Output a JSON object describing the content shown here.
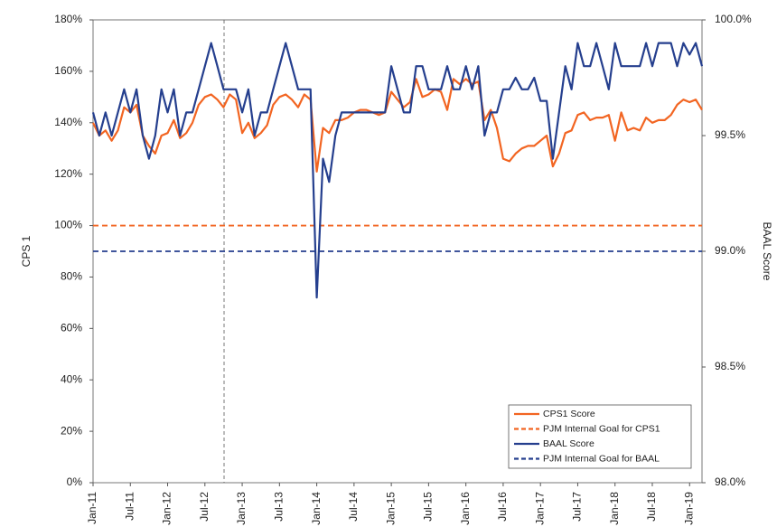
{
  "chart_data": {
    "type": "line",
    "categories": [
      "Jan-11",
      null,
      null,
      null,
      null,
      null,
      "Jul-11",
      null,
      null,
      null,
      null,
      null,
      "Jan-12",
      null,
      null,
      null,
      null,
      null,
      "Jul-12",
      null,
      null,
      null,
      null,
      null,
      "Jan-13",
      null,
      null,
      null,
      null,
      null,
      "Jul-13",
      null,
      null,
      null,
      null,
      null,
      "Jan-14",
      null,
      null,
      null,
      null,
      null,
      "Jul-14",
      null,
      null,
      null,
      null,
      null,
      "Jan-15",
      null,
      null,
      null,
      null,
      null,
      "Jul-15",
      null,
      null,
      null,
      null,
      null,
      "Jan-16",
      null,
      null,
      null,
      null,
      null,
      "Jul-16",
      null,
      null,
      null,
      null,
      null,
      "Jan-17",
      null,
      null,
      null,
      null,
      null,
      "Jul-17",
      null,
      null,
      null,
      null,
      null,
      "Jan-18",
      null,
      null,
      null,
      null,
      null,
      "Jul-18",
      null,
      null,
      null,
      null,
      null,
      "Jan-19",
      null,
      null
    ],
    "series": [
      {
        "name": "CPS1 Score",
        "color": "#f26522",
        "values": [
          140,
          135,
          137,
          133,
          137,
          146,
          144,
          147,
          135,
          131,
          128,
          135,
          136,
          141,
          134,
          136,
          140,
          147,
          150,
          151,
          149,
          146,
          151,
          149,
          136,
          140,
          134,
          136,
          139,
          147,
          150,
          151,
          149,
          146,
          151,
          149,
          121,
          138,
          136,
          141,
          141,
          142,
          144,
          145,
          145,
          144,
          143,
          144,
          152,
          149,
          146,
          148,
          157,
          150,
          151,
          153,
          152,
          145,
          157,
          155,
          157,
          155,
          156,
          141,
          145,
          138,
          126,
          125,
          128,
          130,
          131,
          131,
          133,
          135,
          123,
          128,
          136,
          137,
          143,
          144,
          141,
          142,
          142,
          143,
          133,
          144,
          137,
          138,
          137,
          142,
          140,
          141,
          141,
          143,
          147,
          149,
          148,
          149,
          145
        ]
      },
      {
        "name": "PJM Internal Goal for CPS1",
        "color": "#f26522",
        "dashed": true,
        "value": 100
      },
      {
        "name": "BAAL Score",
        "color": "#253f8e",
        "axis": "y2",
        "values": [
          99.6,
          99.5,
          99.6,
          99.5,
          99.6,
          99.7,
          99.6,
          99.7,
          99.5,
          99.4,
          99.5,
          99.7,
          99.6,
          99.7,
          99.5,
          99.6,
          99.6,
          99.7,
          99.8,
          99.9,
          99.8,
          99.7,
          99.7,
          99.7,
          99.6,
          99.7,
          99.5,
          99.6,
          99.6,
          99.7,
          99.8,
          99.9,
          99.8,
          99.7,
          99.7,
          99.7,
          98.8,
          99.4,
          99.3,
          99.5,
          99.6,
          99.6,
          99.6,
          99.6,
          99.6,
          99.6,
          99.6,
          99.6,
          99.8,
          99.7,
          99.6,
          99.6,
          99.8,
          99.8,
          99.7,
          99.7,
          99.7,
          99.8,
          99.7,
          99.7,
          99.8,
          99.7,
          99.8,
          99.5,
          99.6,
          99.6,
          99.7,
          99.7,
          99.75,
          99.7,
          99.7,
          99.75,
          99.65,
          99.65,
          99.4,
          99.6,
          99.8,
          99.7,
          99.9,
          99.8,
          99.8,
          99.9,
          99.8,
          99.7,
          99.9,
          99.8,
          99.8,
          99.8,
          99.8,
          99.9,
          99.8,
          99.9,
          99.9,
          99.9,
          99.8,
          99.9,
          99.85,
          99.9,
          99.8
        ]
      },
      {
        "name": "PJM Internal Goal for BAAL",
        "color": "#253f8e",
        "dashed": true,
        "axis": "y2",
        "value": 99.0
      }
    ],
    "ylabel": "CPS 1",
    "y2label": "BAAL Score",
    "ylim": [
      0,
      180
    ],
    "yticks": [
      {
        "value": 0,
        "label": "0%"
      },
      {
        "value": 20,
        "label": "20%"
      },
      {
        "value": 40,
        "label": "40%"
      },
      {
        "value": 60,
        "label": "60%"
      },
      {
        "value": 80,
        "label": "80%"
      },
      {
        "value": 100,
        "label": "100%"
      },
      {
        "value": 120,
        "label": "120%"
      },
      {
        "value": 140,
        "label": "140%"
      },
      {
        "value": 160,
        "label": "160%"
      },
      {
        "value": 180,
        "label": "180%"
      }
    ],
    "y2lim": [
      98.0,
      100.0
    ],
    "y2ticks": [
      {
        "value": 98.0,
        "label": "98.0%"
      },
      {
        "value": 98.5,
        "label": "98.5%"
      },
      {
        "value": 99.0,
        "label": "99.0%"
      },
      {
        "value": 99.5,
        "label": "99.5%"
      },
      {
        "value": 100.0,
        "label": "100.0%"
      }
    ],
    "legend": "lower right",
    "grid": false
  }
}
